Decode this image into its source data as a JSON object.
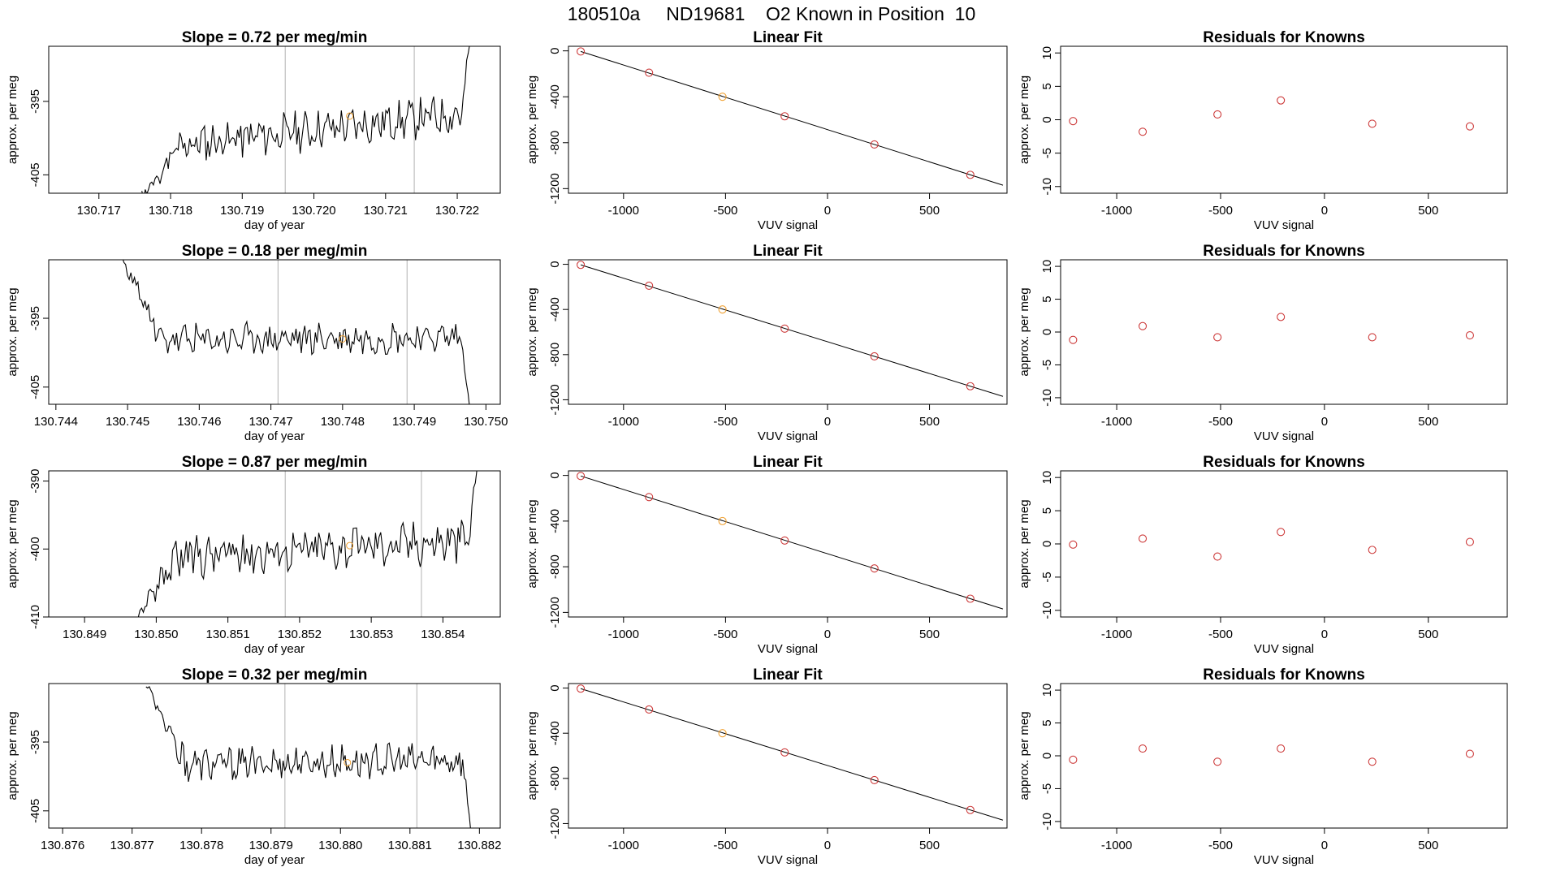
{
  "page_title": "180510a     ND19681    O2 Known in Position  10",
  "colors": {
    "line": "#000000",
    "marker_known": "#cd3b3b",
    "marker_highlight": "#f0a030",
    "grid_vline": "#bebebe",
    "axis": "#000000"
  },
  "chart_data": [
    {
      "id": "ts1",
      "type": "line",
      "title": "Slope =  0.72  per meg/min",
      "xlabel": "day of year",
      "ylabel": "approx. per meg",
      "xlim": [
        130.7163,
        130.7226
      ],
      "ylim": [
        -407.5,
        -387.5
      ],
      "xticks": [
        130.717,
        130.718,
        130.719,
        130.72,
        130.721,
        130.722
      ],
      "xtick_labels": [
        "130.717",
        "130.718",
        "130.719",
        "130.720",
        "130.721",
        "130.722"
      ],
      "yticks": [
        -395,
        -405
      ],
      "ytick_labels": [
        "-395",
        "-405"
      ],
      "vlines": [
        130.7196,
        130.7214
      ],
      "series": {
        "x_start": 130.7176,
        "x_end": 130.7222,
        "base": -399,
        "trend": 5,
        "amp": 2.2,
        "seed": 11,
        "start_y": -408,
        "end_y": -385
      },
      "highlight_point": {
        "x": 130.7205,
        "y": -397
      }
    },
    {
      "id": "lf1",
      "type": "scatter",
      "title": "Linear Fit",
      "xlabel": "VUV signal",
      "ylabel": "approx. per meg",
      "xlim": [
        -1270,
        880
      ],
      "ylim": [
        -1240,
        40
      ],
      "xticks": [
        -1000,
        -500,
        0,
        500
      ],
      "xtick_labels": [
        "-1000",
        "-500",
        "0",
        "500"
      ],
      "yticks": [
        0,
        -400,
        -800,
        -1200
      ],
      "ytick_labels": [
        "0",
        "-400",
        "-800",
        "-1200"
      ],
      "fit_line": {
        "x": [
          -1210,
          860
        ],
        "y": [
          -5,
          -1170
        ]
      },
      "x": [
        -1210,
        -875,
        -515,
        -210,
        230,
        700
      ],
      "y": [
        -5,
        -190,
        -400,
        -570,
        -815,
        -1080
      ],
      "highlight_index": 2
    },
    {
      "id": "rs1",
      "type": "scatter",
      "title": "Residuals for Knowns",
      "xlabel": "VUV signal",
      "ylabel": "approx. per meg",
      "xlim": [
        -1270,
        880
      ],
      "ylim": [
        -11,
        11
      ],
      "xticks": [
        -1000,
        -500,
        0,
        500
      ],
      "xtick_labels": [
        "-1000",
        "-500",
        "0",
        "500"
      ],
      "yticks": [
        10,
        5,
        0,
        -5,
        -10
      ],
      "ytick_labels": [
        "10",
        "5",
        "0",
        "-5",
        "-10"
      ],
      "x": [
        -1210,
        -875,
        -515,
        -210,
        230,
        700
      ],
      "y": [
        -0.2,
        -1.8,
        0.8,
        2.9,
        -0.6,
        -1.0
      ]
    },
    {
      "id": "ts2",
      "type": "line",
      "title": "Slope =  0.18  per meg/min",
      "xlabel": "day of year",
      "ylabel": "approx. per meg",
      "xlim": [
        130.7439,
        130.7502
      ],
      "ylim": [
        -407.5,
        -386.5
      ],
      "xticks": [
        130.744,
        130.745,
        130.746,
        130.747,
        130.748,
        130.749,
        130.75
      ],
      "xtick_labels": [
        "130.744",
        "130.745",
        "130.746",
        "130.747",
        "130.748",
        "130.749",
        "130.750"
      ],
      "yticks": [
        -395,
        -405
      ],
      "ytick_labels": [
        "-395",
        "-405"
      ],
      "vlines": [
        130.7471,
        130.7489
      ],
      "series": {
        "x_start": 130.7449,
        "x_end": 130.7498,
        "base": -398,
        "trend": 0.6,
        "amp": 1.9,
        "seed": 23,
        "start_y": -386,
        "end_y": -410
      },
      "highlight_point": {
        "x": 130.748,
        "y": -398
      }
    },
    {
      "id": "lf2",
      "type": "scatter",
      "title": "Linear Fit",
      "xlabel": "VUV signal",
      "ylabel": "approx. per meg",
      "xlim": [
        -1270,
        880
      ],
      "ylim": [
        -1240,
        40
      ],
      "xticks": [
        -1000,
        -500,
        0,
        500
      ],
      "xtick_labels": [
        "-1000",
        "-500",
        "0",
        "500"
      ],
      "yticks": [
        0,
        -400,
        -800,
        -1200
      ],
      "ytick_labels": [
        "0",
        "-400",
        "-800",
        "-1200"
      ],
      "fit_line": {
        "x": [
          -1210,
          860
        ],
        "y": [
          -5,
          -1170
        ]
      },
      "x": [
        -1210,
        -875,
        -515,
        -210,
        230,
        700
      ],
      "y": [
        -5,
        -190,
        -400,
        -570,
        -815,
        -1080
      ],
      "highlight_index": 2
    },
    {
      "id": "rs2",
      "type": "scatter",
      "title": "Residuals for Knowns",
      "xlabel": "VUV signal",
      "ylabel": "approx. per meg",
      "xlim": [
        -1270,
        880
      ],
      "ylim": [
        -11,
        11
      ],
      "xticks": [
        -1000,
        -500,
        0,
        500
      ],
      "xtick_labels": [
        "-1000",
        "-500",
        "0",
        "500"
      ],
      "yticks": [
        10,
        5,
        0,
        -5,
        -10
      ],
      "ytick_labels": [
        "10",
        "5",
        "0",
        "-5",
        "-10"
      ],
      "x": [
        -1210,
        -875,
        -515,
        -210,
        230,
        700
      ],
      "y": [
        -1.2,
        0.9,
        -0.8,
        2.3,
        -0.8,
        -0.5
      ]
    },
    {
      "id": "ts3",
      "type": "line",
      "title": "Slope =  0.87  per meg/min",
      "xlabel": "day of year",
      "ylabel": "approx. per meg",
      "xlim": [
        130.8485,
        130.8548
      ],
      "ylim": [
        -410,
        -388.5
      ],
      "xticks": [
        130.849,
        130.85,
        130.851,
        130.852,
        130.853,
        130.854
      ],
      "xtick_labels": [
        "130.849",
        "130.850",
        "130.851",
        "130.852",
        "130.853",
        "130.854"
      ],
      "yticks": [
        -390,
        -400,
        -410
      ],
      "ytick_labels": [
        "-390",
        "-400",
        "-410"
      ],
      "vlines": [
        130.8518,
        130.8537
      ],
      "series": {
        "x_start": 130.8497,
        "x_end": 130.8545,
        "base": -400,
        "trend": 3,
        "amp": 2.6,
        "seed": 37,
        "start_y": -411,
        "end_y": -386
      },
      "highlight_point": {
        "x": 130.8527,
        "y": -399.5
      }
    },
    {
      "id": "lf3",
      "type": "scatter",
      "title": "Linear Fit",
      "xlabel": "VUV signal",
      "ylabel": "approx. per meg",
      "xlim": [
        -1270,
        880
      ],
      "ylim": [
        -1240,
        40
      ],
      "xticks": [
        -1000,
        -500,
        0,
        500
      ],
      "xtick_labels": [
        "-1000",
        "-500",
        "0",
        "500"
      ],
      "yticks": [
        0,
        -400,
        -800,
        -1200
      ],
      "ytick_labels": [
        "0",
        "-400",
        "-800",
        "-1200"
      ],
      "fit_line": {
        "x": [
          -1210,
          860
        ],
        "y": [
          -5,
          -1170
        ]
      },
      "x": [
        -1210,
        -875,
        -515,
        -210,
        230,
        700
      ],
      "y": [
        -5,
        -190,
        -400,
        -570,
        -815,
        -1080
      ],
      "highlight_index": 2
    },
    {
      "id": "rs3",
      "type": "scatter",
      "title": "Residuals for Knowns",
      "xlabel": "VUV signal",
      "ylabel": "approx. per meg",
      "xlim": [
        -1270,
        880
      ],
      "ylim": [
        -11,
        11
      ],
      "xticks": [
        -1000,
        -500,
        0,
        500
      ],
      "xtick_labels": [
        "-1000",
        "-500",
        "0",
        "500"
      ],
      "yticks": [
        10,
        5,
        0,
        -5,
        -10
      ],
      "ytick_labels": [
        "10",
        "5",
        "0",
        "-5",
        "-10"
      ],
      "x": [
        -1210,
        -875,
        -515,
        -210,
        230,
        700
      ],
      "y": [
        -0.1,
        0.8,
        -1.9,
        1.8,
        -0.9,
        0.3
      ]
    },
    {
      "id": "ts4",
      "type": "line",
      "title": "Slope =  0.32  per meg/min",
      "xlabel": "day of year",
      "ylabel": "approx. per meg",
      "xlim": [
        130.8758,
        130.8823
      ],
      "ylim": [
        -407.5,
        -386.5
      ],
      "xticks": [
        130.876,
        130.877,
        130.878,
        130.879,
        130.88,
        130.881,
        130.882
      ],
      "xtick_labels": [
        "130.876",
        "130.877",
        "130.878",
        "130.879",
        "130.880",
        "130.881",
        "130.882"
      ],
      "yticks": [
        -395,
        -405
      ],
      "ytick_labels": [
        "-395",
        "-405"
      ],
      "vlines": [
        130.8792,
        130.8811
      ],
      "series": {
        "x_start": 130.8772,
        "x_end": 130.8819,
        "base": -398,
        "trend": 0.8,
        "amp": 2.0,
        "seed": 53,
        "start_y": -386,
        "end_y": -410
      },
      "highlight_point": {
        "x": 130.8801,
        "y": -398
      }
    },
    {
      "id": "lf4",
      "type": "scatter",
      "title": "Linear Fit",
      "xlabel": "VUV signal",
      "ylabel": "approx. per meg",
      "xlim": [
        -1270,
        880
      ],
      "ylim": [
        -1240,
        40
      ],
      "xticks": [
        -1000,
        -500,
        0,
        500
      ],
      "xtick_labels": [
        "-1000",
        "-500",
        "0",
        "500"
      ],
      "yticks": [
        0,
        -400,
        -800,
        -1200
      ],
      "ytick_labels": [
        "0",
        "-400",
        "-800",
        "-1200"
      ],
      "fit_line": {
        "x": [
          -1210,
          860
        ],
        "y": [
          -5,
          -1170
        ]
      },
      "x": [
        -1210,
        -875,
        -515,
        -210,
        230,
        700
      ],
      "y": [
        -5,
        -190,
        -400,
        -570,
        -815,
        -1080
      ],
      "highlight_index": 2
    },
    {
      "id": "rs4",
      "type": "scatter",
      "title": "Residuals for Knowns",
      "xlabel": "VUV signal",
      "ylabel": "approx. per meg",
      "xlim": [
        -1270,
        880
      ],
      "ylim": [
        -11,
        11
      ],
      "xticks": [
        -1000,
        -500,
        0,
        500
      ],
      "xtick_labels": [
        "-1000",
        "-500",
        "0",
        "500"
      ],
      "yticks": [
        10,
        5,
        0,
        -5,
        -10
      ],
      "ytick_labels": [
        "10",
        "5",
        "0",
        "-5",
        "-10"
      ],
      "x": [
        -1210,
        -875,
        -515,
        -210,
        230,
        700
      ],
      "y": [
        -0.6,
        1.1,
        -0.9,
        1.1,
        -0.9,
        0.3
      ]
    }
  ]
}
